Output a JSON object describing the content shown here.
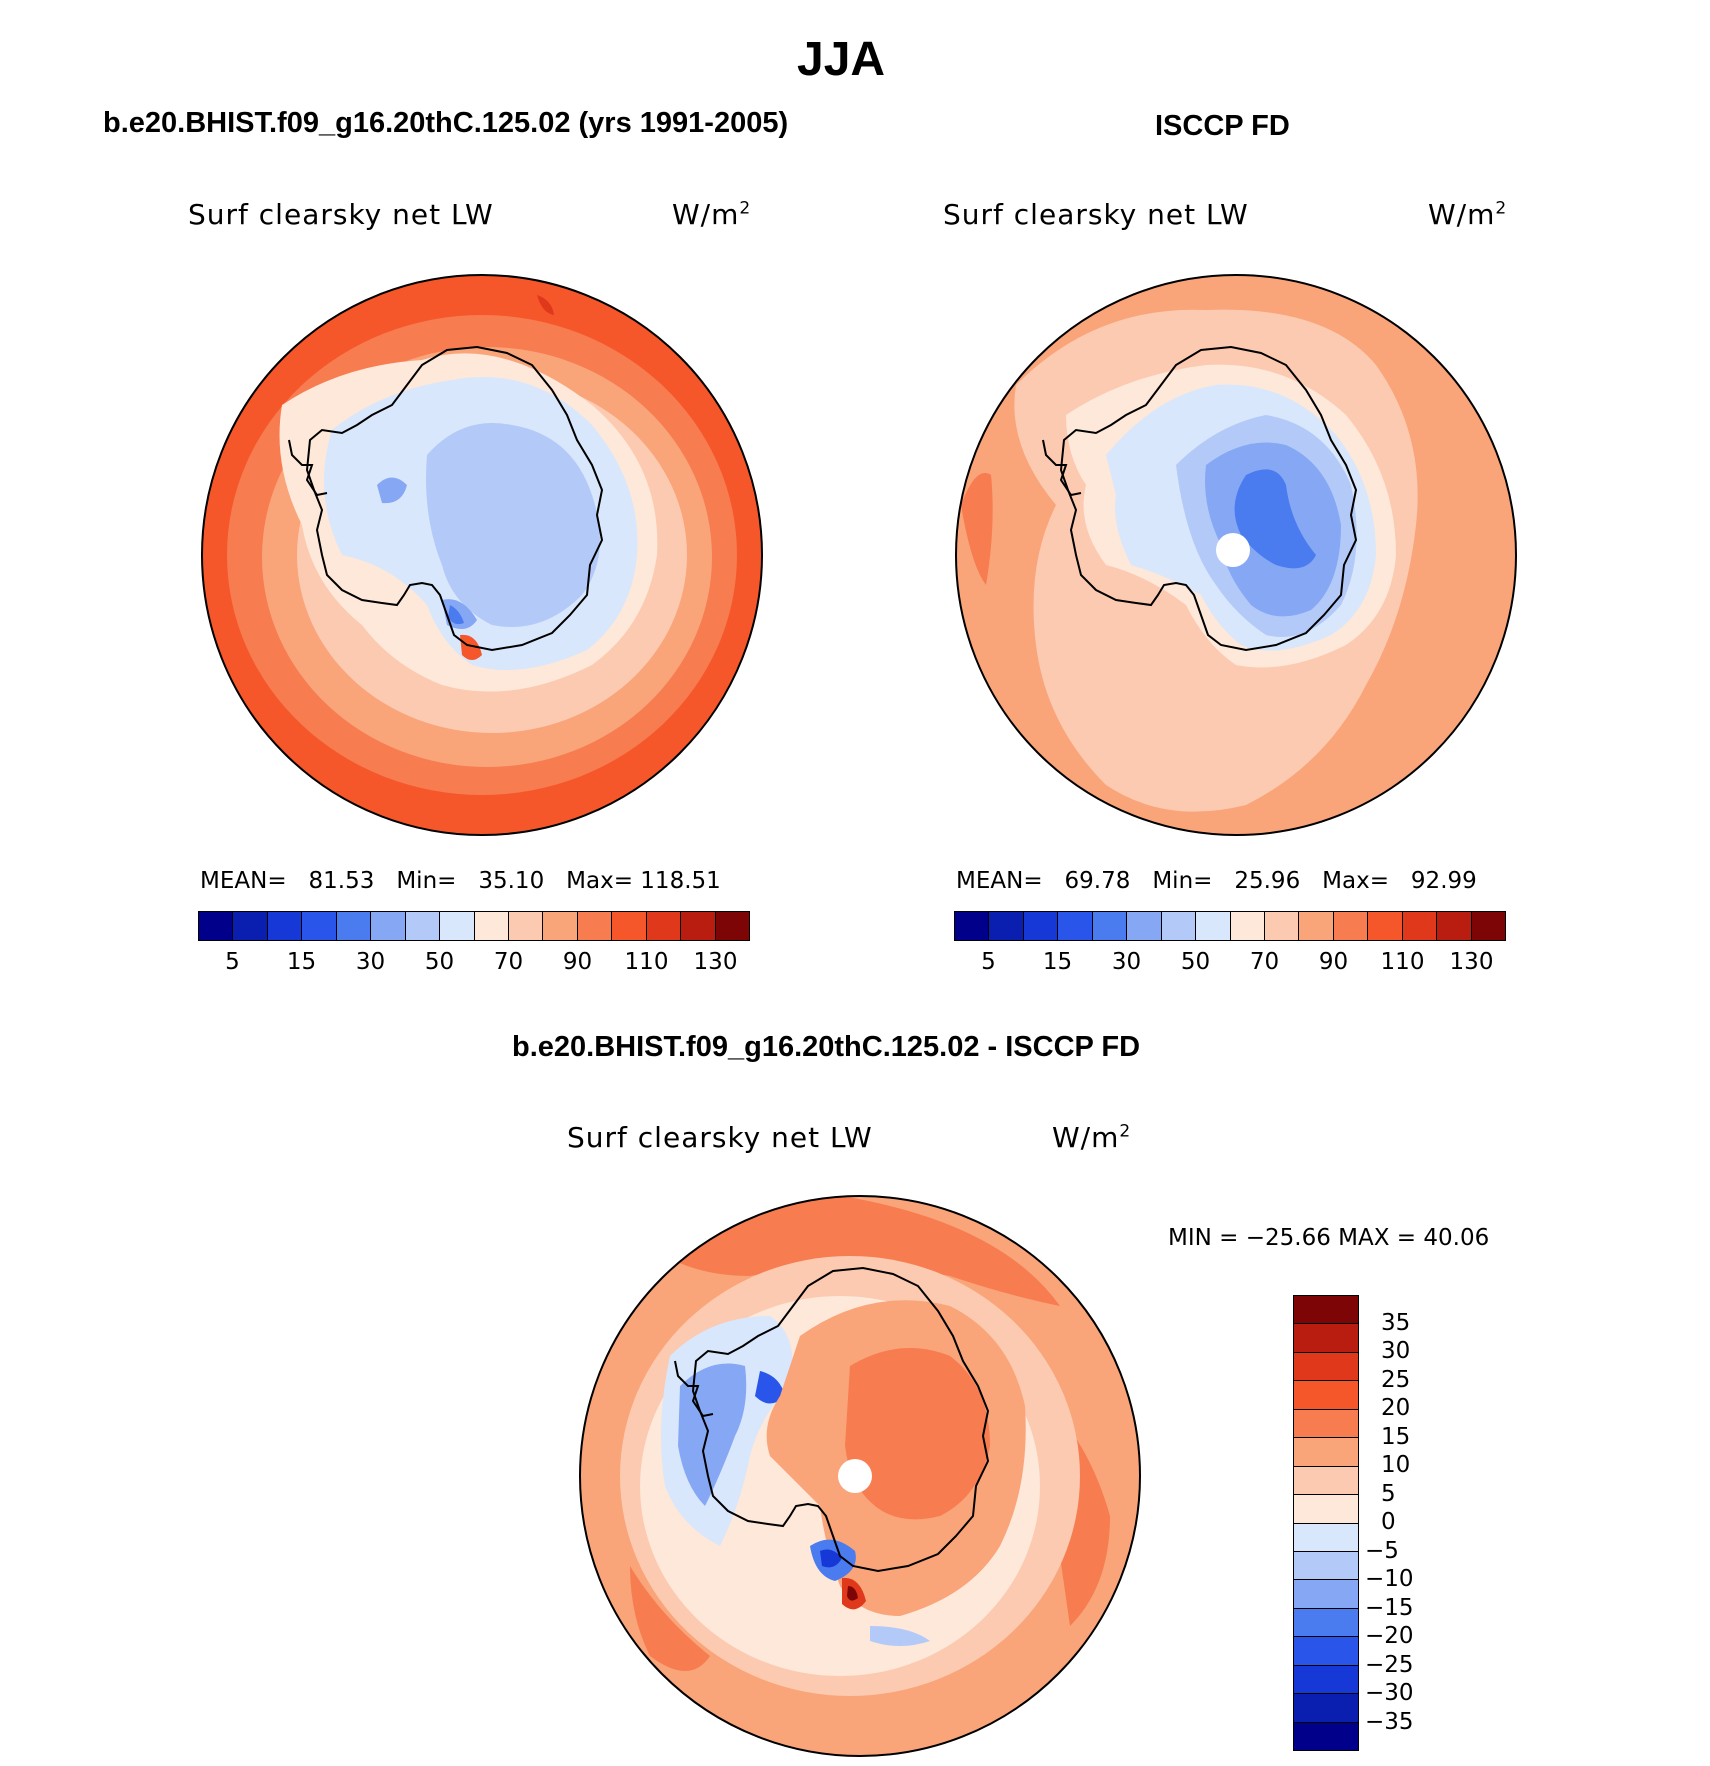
{
  "figure": {
    "title": "JJA"
  },
  "panels": {
    "model": {
      "title": "b.e20.BHIST.f09_g16.20thC.125.02 (yrs 1991-2005)",
      "variable": "Surf clearsky net LW",
      "units": "W/m",
      "units_sup": "2",
      "mean_label": "MEAN=",
      "mean": "81.53",
      "min_label": "Min=",
      "min": "35.10",
      "max_label": "Max=",
      "max": "118.51"
    },
    "obs": {
      "title": "ISCCP FD",
      "variable": "Surf clearsky net LW",
      "units": "W/m",
      "units_sup": "2",
      "mean_label": "MEAN=",
      "mean": "69.78",
      "min_label": "Min=",
      "min": "25.96",
      "max_label": "Max=",
      "max": "92.99"
    },
    "diff": {
      "title": "b.e20.BHIST.f09_g16.20thC.125.02 - ISCCP FD",
      "variable": "Surf clearsky net LW",
      "units": "W/m",
      "units_sup": "2",
      "minmax": "MIN = −25.66 MAX =   40.06"
    }
  },
  "colorbars": {
    "abs": {
      "ticks": [
        "5",
        "15",
        "30",
        "50",
        "70",
        "90",
        "110",
        "130"
      ],
      "colors": [
        "#00008b",
        "#0a1fb0",
        "#1538d6",
        "#2a55ea",
        "#4a7cf0",
        "#86a8f4",
        "#b3c9f8",
        "#d8e7fb",
        "#fde8d9",
        "#fccab0",
        "#f9a479",
        "#f77c50",
        "#f5572a",
        "#e0381a",
        "#b81d10",
        "#7d0505"
      ]
    },
    "diff": {
      "ticks": [
        "35",
        "30",
        "25",
        "20",
        "15",
        "10",
        "5",
        "0",
        "−5",
        "−10",
        "−15",
        "−20",
        "−25",
        "−30",
        "−35"
      ],
      "colors": [
        "#7d0505",
        "#b81d10",
        "#e0381a",
        "#f5572a",
        "#f77c50",
        "#f9a479",
        "#fccab0",
        "#fde8d9",
        "#d8e7fb",
        "#b3c9f8",
        "#86a8f4",
        "#4a7cf0",
        "#2a55ea",
        "#1538d6",
        "#0a1fb0",
        "#00008b"
      ]
    }
  }
}
